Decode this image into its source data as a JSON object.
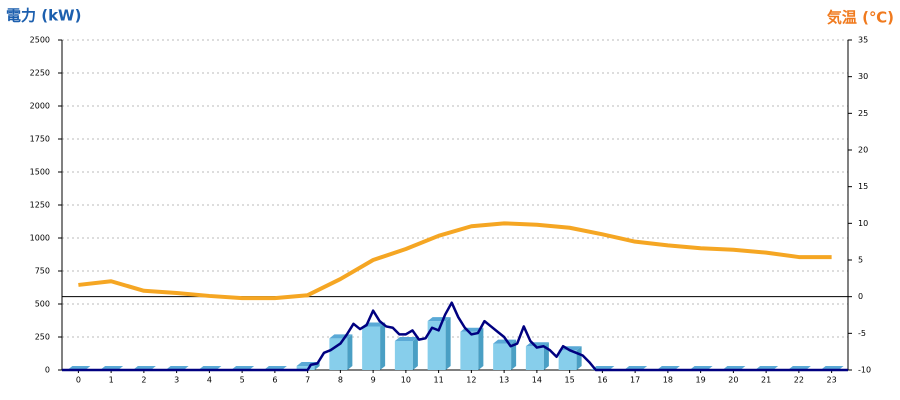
{
  "chart_data": {
    "type": "combo",
    "y_title": "電力 (kW)",
    "y2_title": "気温 (℃)",
    "categories": [
      "0",
      "1",
      "2",
      "3",
      "4",
      "5",
      "6",
      "7",
      "8",
      "9",
      "10",
      "11",
      "12",
      "13",
      "14",
      "15",
      "16",
      "17",
      "18",
      "19",
      "20",
      "21",
      "22",
      "23"
    ],
    "ylim": [
      0,
      2500
    ],
    "yticks": [
      0,
      250,
      500,
      750,
      1000,
      1250,
      1500,
      1750,
      2000,
      2250,
      2500
    ],
    "y2lim": [
      -10,
      35
    ],
    "y2ticks": [
      -10,
      -5,
      0,
      5,
      10,
      15,
      20,
      25,
      30,
      35
    ],
    "grid": true,
    "series": [
      {
        "type": "bar",
        "color": "#87ceeb",
        "values": [
          0,
          0,
          0,
          0,
          0,
          0,
          0,
          30,
          240,
          330,
          220,
          370,
          290,
          200,
          180,
          150,
          0,
          0,
          0,
          0,
          0,
          0,
          0,
          0
        ]
      },
      {
        "type": "line",
        "color": "#000080",
        "x": [
          -0.5,
          7,
          7.1,
          7.3,
          7.5,
          7.7,
          8,
          8.2,
          8.4,
          8.6,
          8.8,
          9,
          9.2,
          9.4,
          9.6,
          9.8,
          10,
          10.2,
          10.4,
          10.6,
          10.8,
          11,
          11.2,
          11.4,
          11.6,
          11.8,
          12,
          12.2,
          12.4,
          12.6,
          12.8,
          13,
          13.2,
          13.4,
          13.6,
          13.8,
          14,
          14.2,
          14.4,
          14.6,
          14.8,
          15,
          15.2,
          15.4,
          15.6,
          15.8,
          16,
          23.5
        ],
        "values": [
          0,
          0,
          40,
          50,
          130,
          150,
          200,
          270,
          350,
          310,
          340,
          450,
          370,
          330,
          320,
          270,
          270,
          300,
          230,
          240,
          320,
          300,
          420,
          510,
          400,
          320,
          270,
          280,
          370,
          330,
          290,
          250,
          180,
          200,
          330,
          220,
          170,
          180,
          150,
          100,
          180,
          150,
          130,
          110,
          60,
          0,
          0,
          0
        ]
      },
      {
        "type": "line",
        "axis": "y2",
        "color": "#f5a623",
        "values": [
          1.6,
          2.1,
          0.8,
          0.5,
          0.1,
          -0.2,
          -0.2,
          0.2,
          2.4,
          5.0,
          6.5,
          8.3,
          9.6,
          10.0,
          9.8,
          9.4,
          8.5,
          7.5,
          7.0,
          6.6,
          6.4,
          6.0,
          5.4,
          5.4
        ]
      }
    ],
    "xlim": [
      -0.5,
      23.5
    ]
  }
}
